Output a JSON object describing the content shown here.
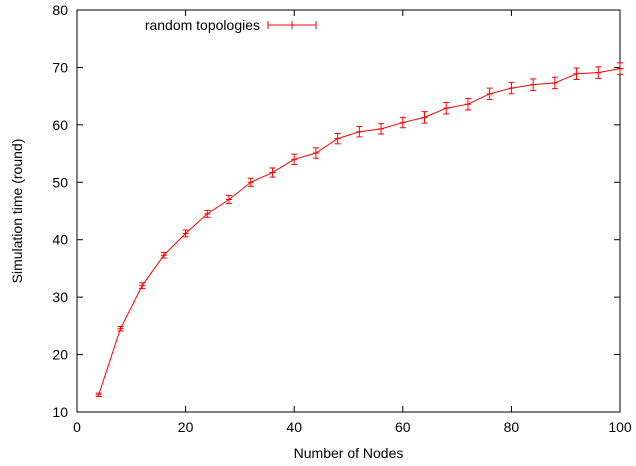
{
  "chart_data": {
    "type": "line",
    "xlabel": "Number of Nodes",
    "ylabel": "Simulation time (round)",
    "xlim": [
      0,
      100
    ],
    "ylim": [
      10,
      80
    ],
    "xticks": [
      0,
      20,
      40,
      60,
      80,
      100
    ],
    "yticks": [
      10,
      20,
      30,
      40,
      50,
      60,
      70,
      80
    ],
    "xtick_labels": [
      "0",
      "20",
      "40",
      "60",
      "80",
      "100"
    ],
    "ytick_labels": [
      "10",
      "20",
      "30",
      "40",
      "50",
      "60",
      "70",
      "80"
    ],
    "grid": false,
    "legend_position": "top-left",
    "series": [
      {
        "name": "random topologies",
        "color": "#ff0000",
        "x": [
          4,
          8,
          12,
          16,
          20,
          24,
          28,
          32,
          36,
          40,
          44,
          48,
          52,
          56,
          60,
          64,
          68,
          72,
          76,
          80,
          84,
          88,
          92,
          96,
          100
        ],
        "y": [
          13.0,
          24.5,
          32.0,
          37.3,
          41.1,
          44.5,
          47.0,
          50.0,
          51.7,
          54.0,
          55.1,
          57.6,
          58.8,
          59.3,
          60.4,
          61.3,
          62.9,
          63.6,
          65.4,
          66.4,
          67.0,
          67.3,
          68.9,
          69.1,
          69.8
        ],
        "err": [
          0.3,
          0.4,
          0.5,
          0.5,
          0.6,
          0.6,
          0.7,
          0.7,
          0.8,
          0.9,
          0.9,
          0.9,
          0.9,
          0.9,
          0.9,
          1.0,
          1.0,
          1.0,
          1.0,
          1.0,
          1.0,
          1.0,
          1.0,
          1.0,
          1.0
        ]
      }
    ]
  }
}
